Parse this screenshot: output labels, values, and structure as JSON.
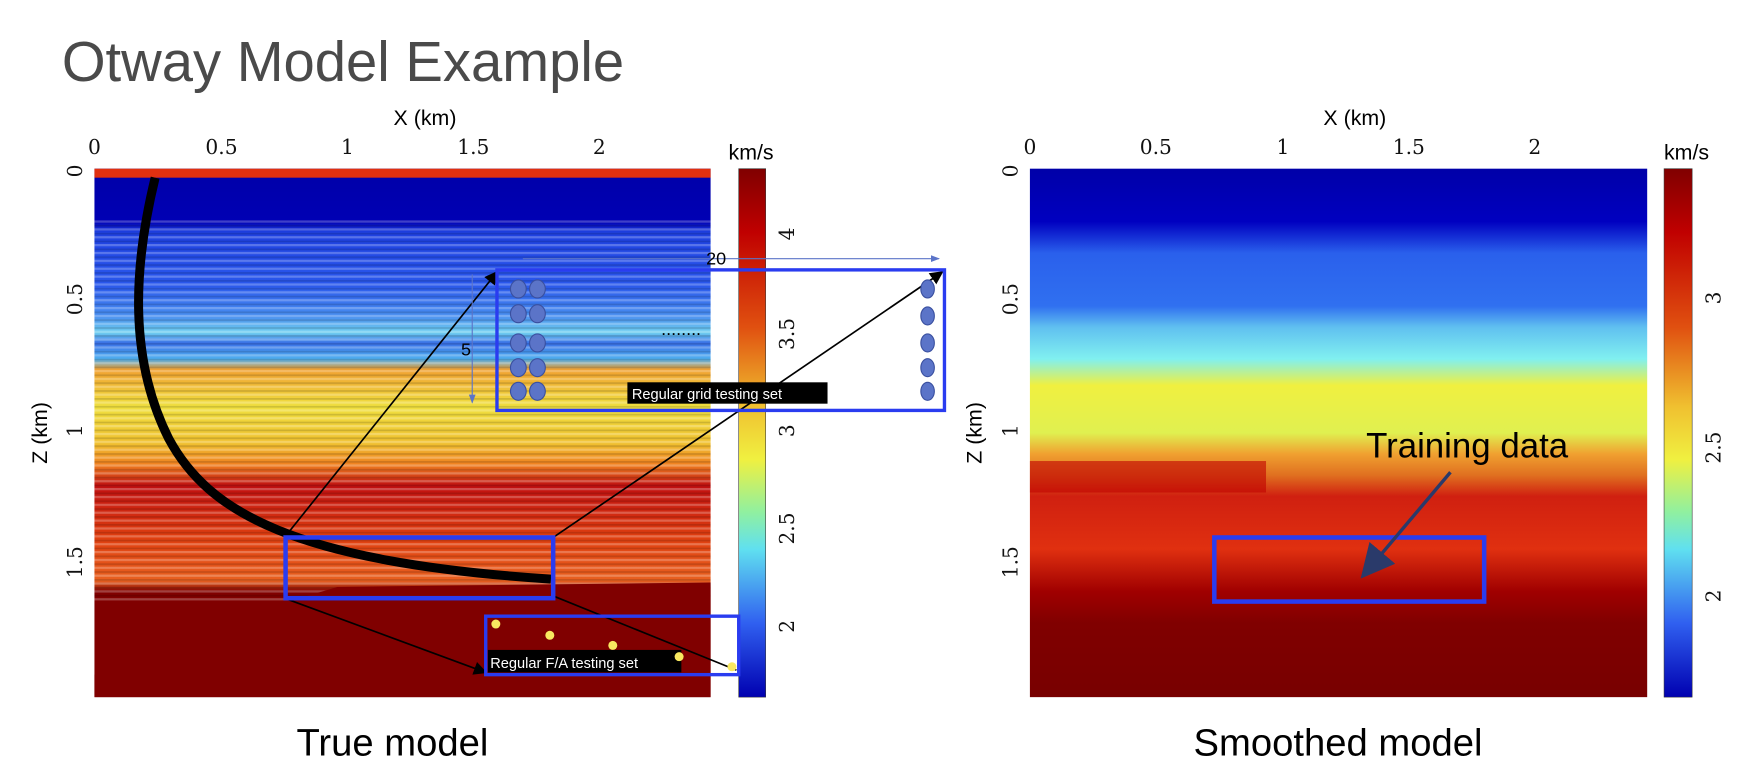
{
  "title": "Otway Model Example",
  "left_panel": {
    "caption": "True model",
    "xlabel": "X (km)",
    "ylabel": "Z (km)",
    "x_ticks": [
      "0",
      "0.5",
      "1",
      "1.5",
      "2"
    ],
    "z_ticks": [
      "0",
      "0.5",
      "1",
      "1.5"
    ],
    "colorbar_unit": "km/s",
    "colorbar_ticks": [
      "4",
      "3.5",
      "3",
      "2.5",
      "2"
    ],
    "colorbar_range": [
      1.65,
      4.33
    ],
    "annotations": {
      "spacing_x": "20",
      "spacing_z": "5",
      "dots": "........",
      "grid_label": "Regular grid testing set",
      "fa_label": "Regular F/A testing set"
    }
  },
  "right_panel": {
    "caption": "Smoothed model",
    "xlabel": "X (km)",
    "ylabel": "Z (km)",
    "x_ticks": [
      "0",
      "0.5",
      "1",
      "1.5",
      "2"
    ],
    "z_ticks": [
      "0",
      "0.5",
      "1",
      "1.5"
    ],
    "colorbar_unit": "km/s",
    "colorbar_ticks": [
      "3",
      "2.5",
      "2"
    ],
    "colorbar_range": [
      1.66,
      3.43
    ],
    "training_label": "Training data"
  },
  "colors": {
    "box": "#2a3cf0",
    "well": "#000000",
    "grid_dot": "#5b74c8",
    "fa_dot": "#f8e860"
  }
}
